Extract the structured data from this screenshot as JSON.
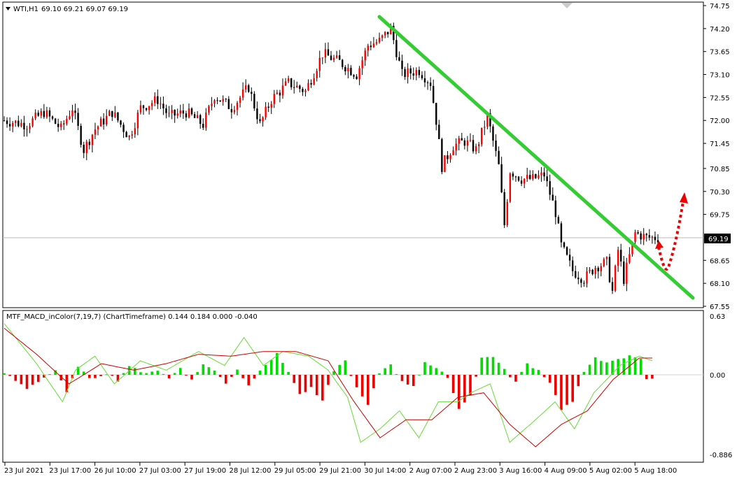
{
  "header": {
    "symbol_label": "WTI,H1",
    "ohlc": "69.10 69.21 69.07 69.19"
  },
  "price_box": "69.19",
  "indicator": {
    "label": "MTF_MACD_inColor(7,19,7) (ChartTimeframe) 0.144 0.184 0.000 -0.040"
  },
  "colors": {
    "bull": "#ff0000",
    "bear": "#000000",
    "trendline": "#33cc33",
    "hist_pos": "#00dd00",
    "hist_neg": "#ee0000",
    "macd_line": "#66dd33",
    "signal_line": "#cc0000",
    "arrow": "#ee0000"
  },
  "chart_data": [
    {
      "type": "candlestick",
      "instrument": "WTI",
      "timeframe": "H1",
      "ylim": [
        67.55,
        74.75
      ],
      "yticks": [
        "74.75",
        "74.20",
        "73.65",
        "73.10",
        "72.55",
        "72.00",
        "71.45",
        "70.85",
        "70.30",
        "69.75",
        "68.65",
        "68.10",
        "67.55"
      ],
      "current_price": 69.19,
      "close_path": [
        [
          0,
          72.0
        ],
        [
          8,
          71.9
        ],
        [
          14,
          72.2
        ],
        [
          20,
          71.8
        ],
        [
          24,
          72.3
        ],
        [
          28,
          71.3
        ],
        [
          32,
          71.8
        ],
        [
          38,
          72.2
        ],
        [
          44,
          71.6
        ],
        [
          48,
          72.3
        ],
        [
          54,
          72.5
        ],
        [
          58,
          72.1
        ],
        [
          64,
          72.2
        ],
        [
          70,
          71.9
        ],
        [
          74,
          72.6
        ],
        [
          80,
          72.3
        ],
        [
          86,
          72.8
        ],
        [
          90,
          71.9
        ],
        [
          94,
          72.5
        ],
        [
          100,
          72.9
        ],
        [
          106,
          72.7
        ],
        [
          112,
          73.6
        ],
        [
          118,
          73.4
        ],
        [
          124,
          73.1
        ],
        [
          128,
          73.8
        ],
        [
          132,
          73.9
        ],
        [
          136,
          74.2
        ],
        [
          140,
          73.1
        ],
        [
          146,
          73.2
        ],
        [
          150,
          72.9
        ],
        [
          152,
          72.0
        ],
        [
          154,
          70.9
        ],
        [
          158,
          71.4
        ],
        [
          162,
          71.5
        ],
        [
          166,
          71.3
        ],
        [
          170,
          72.1
        ],
        [
          174,
          70.9
        ],
        [
          176,
          69.5
        ],
        [
          178,
          70.8
        ],
        [
          182,
          70.6
        ],
        [
          186,
          70.6
        ],
        [
          190,
          70.7
        ],
        [
          194,
          69.8
        ],
        [
          196,
          69.0
        ],
        [
          200,
          68.4
        ],
        [
          204,
          68.2
        ],
        [
          208,
          68.5
        ],
        [
          212,
          68.6
        ],
        [
          214,
          67.9
        ],
        [
          216,
          68.9
        ],
        [
          218,
          68.2
        ],
        [
          222,
          69.3
        ],
        [
          226,
          69.2
        ],
        [
          230,
          69.19
        ]
      ],
      "trendline": [
        [
          30,
          74.5
        ],
        [
          245,
          67.85
        ]
      ],
      "projection": "down to 68.4 then up to 70.2"
    },
    {
      "type": "macd",
      "title": "MTF_MACD_inColor(7,19,7) (ChartTimeframe)",
      "ylim": [
        -0.886,
        0.63
      ],
      "yticks": [
        "0.63",
        "0.00",
        "-0.886"
      ],
      "histogram": [
        [
          0,
          0.02
        ],
        [
          8,
          -0.15
        ],
        [
          14,
          -0.03
        ],
        [
          18,
          0.05
        ],
        [
          22,
          -0.2
        ],
        [
          26,
          0.1
        ],
        [
          30,
          -0.05
        ],
        [
          36,
          0.02
        ],
        [
          40,
          -0.06
        ],
        [
          44,
          0.1
        ],
        [
          48,
          0.02
        ],
        [
          54,
          0.05
        ],
        [
          58,
          -0.04
        ],
        [
          62,
          0.08
        ],
        [
          66,
          -0.06
        ],
        [
          70,
          0.12
        ],
        [
          74,
          0.04
        ],
        [
          78,
          -0.09
        ],
        [
          82,
          0.06
        ],
        [
          86,
          -0.12
        ],
        [
          90,
          0.06
        ],
        [
          96,
          0.22
        ],
        [
          100,
          0.04
        ],
        [
          104,
          -0.22
        ],
        [
          108,
          -0.15
        ],
        [
          112,
          -0.3
        ],
        [
          116,
          0.05
        ],
        [
          120,
          0.15
        ],
        [
          124,
          -0.15
        ],
        [
          128,
          -0.34
        ],
        [
          132,
          0.02
        ],
        [
          136,
          0.12
        ],
        [
          140,
          -0.08
        ],
        [
          144,
          -0.12
        ],
        [
          148,
          0.14
        ],
        [
          152,
          0.06
        ],
        [
          156,
          -0.02
        ],
        [
          160,
          -0.38
        ],
        [
          164,
          -0.22
        ],
        [
          168,
          0.18
        ],
        [
          172,
          0.2
        ],
        [
          176,
          0.05
        ],
        [
          180,
          -0.08
        ],
        [
          184,
          0.12
        ],
        [
          188,
          0.05
        ],
        [
          192,
          -0.08
        ],
        [
          196,
          -0.38
        ],
        [
          200,
          -0.3
        ],
        [
          204,
          0.02
        ],
        [
          208,
          0.2
        ],
        [
          212,
          0.12
        ],
        [
          216,
          0.16
        ],
        [
          220,
          0.2
        ],
        [
          224,
          0.18
        ],
        [
          226,
          -0.04
        ],
        [
          228,
          -0.04
        ]
      ],
      "macd": [
        [
          0,
          0.55
        ],
        [
          10,
          0.12
        ],
        [
          18,
          -0.3
        ],
        [
          22,
          0.05
        ],
        [
          28,
          0.2
        ],
        [
          34,
          -0.1
        ],
        [
          42,
          0.15
        ],
        [
          50,
          0.05
        ],
        [
          60,
          0.25
        ],
        [
          68,
          0.1
        ],
        [
          74,
          0.4
        ],
        [
          80,
          0.1
        ],
        [
          86,
          0.25
        ],
        [
          94,
          0.2
        ],
        [
          100,
          0.05
        ],
        [
          106,
          -0.25
        ],
        [
          110,
          -0.75
        ],
        [
          116,
          -0.6
        ],
        [
          122,
          -0.4
        ],
        [
          128,
          -0.7
        ],
        [
          134,
          -0.3
        ],
        [
          140,
          -0.3
        ],
        [
          144,
          -0.2
        ],
        [
          150,
          -0.1
        ],
        [
          156,
          -0.75
        ],
        [
          164,
          -0.5
        ],
        [
          170,
          -0.3
        ],
        [
          176,
          -0.6
        ],
        [
          182,
          -0.2
        ],
        [
          190,
          0.1
        ],
        [
          196,
          0.2
        ],
        [
          200,
          0.15
        ]
      ],
      "signal": [
        [
          0,
          0.5
        ],
        [
          10,
          0.22
        ],
        [
          20,
          -0.1
        ],
        [
          30,
          0.12
        ],
        [
          40,
          0.05
        ],
        [
          50,
          0.12
        ],
        [
          60,
          0.22
        ],
        [
          70,
          0.2
        ],
        [
          80,
          0.25
        ],
        [
          90,
          0.25
        ],
        [
          100,
          0.15
        ],
        [
          108,
          -0.3
        ],
        [
          116,
          -0.7
        ],
        [
          124,
          -0.5
        ],
        [
          132,
          -0.5
        ],
        [
          140,
          -0.25
        ],
        [
          148,
          -0.2
        ],
        [
          156,
          -0.55
        ],
        [
          164,
          -0.8
        ],
        [
          172,
          -0.55
        ],
        [
          180,
          -0.4
        ],
        [
          188,
          -0.05
        ],
        [
          196,
          0.18
        ],
        [
          200,
          0.18
        ]
      ]
    }
  ],
  "xaxis": {
    "labels": [
      "23 Jul 2021",
      "23 Jul 17:00",
      "26 Jul 10:00",
      "27 Jul 03:00",
      "27 Jul 19:00",
      "28 Jul 12:00",
      "29 Jul 05:00",
      "29 Jul 21:00",
      "30 Jul 14:00",
      "2 Aug 07:00",
      "2 Aug 23:00",
      "3 Aug 16:00",
      "4 Aug 09:00",
      "5 Aug 02:00",
      "5 Aug 18:00"
    ]
  }
}
